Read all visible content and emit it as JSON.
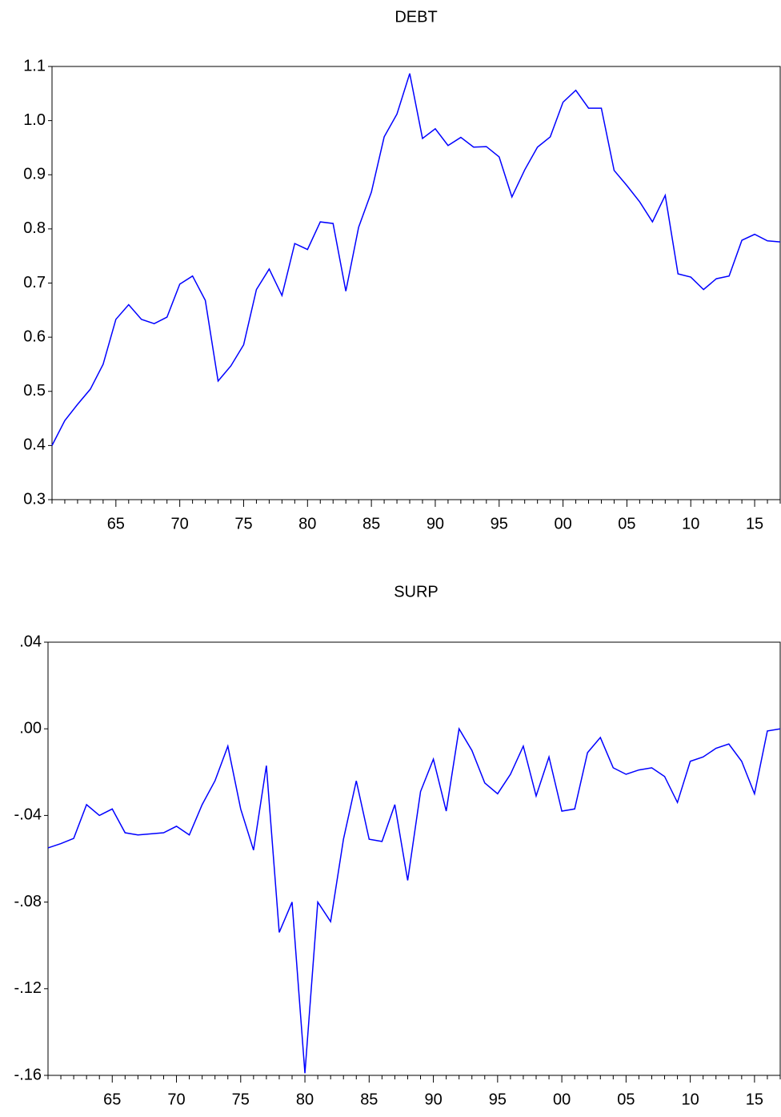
{
  "chart_data": [
    {
      "type": "line",
      "title": "DEBT",
      "categories": [
        null,
        null,
        null,
        null,
        null,
        "65",
        null,
        null,
        null,
        null,
        "70",
        null,
        null,
        null,
        null,
        "75",
        null,
        null,
        null,
        null,
        "80",
        null,
        null,
        null,
        null,
        "85",
        null,
        null,
        null,
        null,
        "90",
        null,
        null,
        null,
        null,
        "95",
        null,
        null,
        null,
        null,
        "00",
        null,
        null,
        null,
        null,
        "05",
        null,
        null,
        null,
        null,
        "10",
        null,
        null,
        null,
        null,
        "15",
        null,
        null
      ],
      "values": [
        0.4,
        0.446,
        0.476,
        0.504,
        0.55,
        0.633,
        0.66,
        0.633,
        0.625,
        0.637,
        0.698,
        0.713,
        0.668,
        0.519,
        0.547,
        0.586,
        0.688,
        0.726,
        0.677,
        0.773,
        0.762,
        0.813,
        0.81,
        0.685,
        0.803,
        0.868,
        0.97,
        1.012,
        1.087,
        0.967,
        0.985,
        0.954,
        0.969,
        0.951,
        0.952,
        0.933,
        0.859,
        0.909,
        0.951,
        0.97,
        1.034,
        1.056,
        1.023,
        1.023,
        0.908,
        0.88,
        0.85,
        0.813,
        0.862,
        0.717,
        0.711,
        0.688,
        0.708,
        0.713,
        0.779,
        0.79,
        0.778,
        0.776
      ],
      "color": "#0000ff",
      "ylim": [
        0.3,
        1.1
      ],
      "yticks": [
        0.3,
        0.4,
        0.5,
        0.6,
        0.7,
        0.8,
        0.9,
        {
          "value": 1,
          "label": "1.0"
        },
        1.1
      ]
    },
    {
      "type": "line",
      "title": "SURP",
      "categories": [
        null,
        null,
        null,
        null,
        null,
        "65",
        null,
        null,
        null,
        null,
        "70",
        null,
        null,
        null,
        null,
        "75",
        null,
        null,
        null,
        null,
        "80",
        null,
        null,
        null,
        null,
        "85",
        null,
        null,
        null,
        null,
        "90",
        null,
        null,
        null,
        null,
        "95",
        null,
        null,
        null,
        null,
        "00",
        null,
        null,
        null,
        null,
        "05",
        null,
        null,
        null,
        null,
        "10",
        null,
        null,
        null,
        null,
        "15",
        null,
        null
      ],
      "values": [
        -0.055,
        -0.053,
        -0.0506,
        -0.035,
        -0.04,
        -0.037,
        -0.048,
        -0.049,
        -0.0485,
        -0.048,
        -0.045,
        -0.049,
        -0.035,
        -0.024,
        -0.008,
        -0.037,
        -0.056,
        -0.017,
        -0.094,
        -0.08,
        -0.159,
        -0.08,
        -0.089,
        -0.051,
        -0.024,
        -0.051,
        -0.052,
        -0.035,
        -0.07,
        -0.029,
        -0.014,
        -0.038,
        0.0,
        -0.01,
        -0.025,
        -0.03,
        -0.021,
        -0.008,
        -0.031,
        -0.013,
        -0.038,
        -0.037,
        -0.011,
        -0.004,
        -0.018,
        -0.021,
        -0.019,
        -0.018,
        -0.022,
        -0.034,
        -0.015,
        -0.013,
        -0.009,
        -0.007,
        -0.015,
        -0.03,
        -0.001,
        0.0
      ],
      "color": "#0000ff",
      "ylim": [
        -0.16,
        0.04
      ],
      "yticks": [
        {
          "value": -0.16,
          "label": "-.16"
        },
        {
          "value": -0.12,
          "label": "-.12"
        },
        {
          "value": -0.08,
          "label": "-.08"
        },
        {
          "value": -0.04,
          "label": "-.04"
        },
        {
          "value": 0,
          "label": ".00"
        },
        {
          "value": 0.04,
          "label": ".04"
        }
      ]
    }
  ]
}
